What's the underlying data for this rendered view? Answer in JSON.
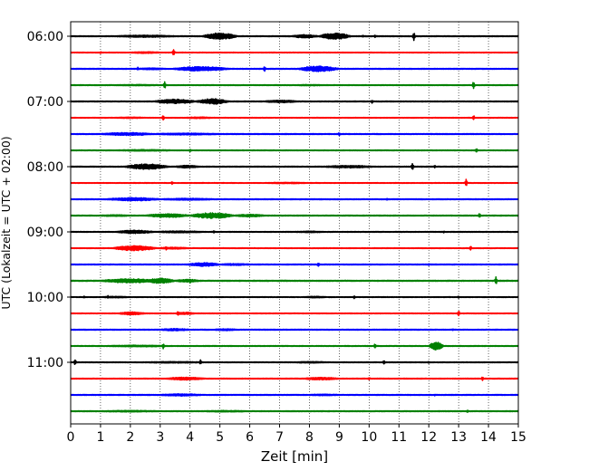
{
  "chart_data": {
    "type": "line",
    "chart_kind": "helicorder",
    "title": "",
    "xlabel": "Zeit  [min]",
    "ylabel": "UTC (Lokalzeit = UTC + 02:00)",
    "xlim": [
      0,
      15
    ],
    "x_ticks": [
      "0",
      "1",
      "2",
      "3",
      "4",
      "5",
      "6",
      "7",
      "8",
      "9",
      "10",
      "11",
      "12",
      "13",
      "14",
      "15"
    ],
    "y_ticks": [
      "06:00",
      "07:00",
      "08:00",
      "09:00",
      "10:00",
      "11:00"
    ],
    "trace_interval_min": 15,
    "grid": "vertical dotted lines at each minute",
    "trace_colors": [
      "#000000",
      "#ff0000",
      "#0000ff",
      "#008000"
    ],
    "traces": [
      {
        "start": "06:00",
        "color": "#000000",
        "base": 0.45,
        "bursts": [
          [
            1.5,
            3.5,
            1.2
          ],
          [
            4.4,
            5.6,
            3.5
          ],
          [
            7.4,
            8.3,
            1.8
          ],
          [
            8.3,
            9.4,
            3.5
          ]
        ],
        "spikes": [
          [
            9.8,
            1.2
          ],
          [
            10.2,
            1.5
          ],
          [
            11.5,
            4.8
          ]
        ]
      },
      {
        "start": "06:15",
        "color": "#ff0000",
        "base": 0.35,
        "bursts": [
          [
            2.0,
            3.0,
            0.9
          ]
        ],
        "spikes": [
          [
            1.0,
            1.2
          ],
          [
            3.45,
            4.2
          ]
        ]
      },
      {
        "start": "06:30",
        "color": "#0000ff",
        "base": 0.45,
        "bursts": [
          [
            2.2,
            3.2,
            0.9
          ],
          [
            3.4,
            5.3,
            2.4
          ],
          [
            7.6,
            9.0,
            3.0
          ]
        ],
        "spikes": [
          [
            2.25,
            1.8
          ],
          [
            6.5,
            3.2
          ]
        ]
      },
      {
        "start": "06:45",
        "color": "#008000",
        "base": 0.4,
        "bursts": [
          [
            1.5,
            3.0,
            0.7
          ],
          [
            7.5,
            8.5,
            0.7
          ]
        ],
        "spikes": [
          [
            3.15,
            4.2
          ],
          [
            13.5,
            4.2
          ]
        ]
      },
      {
        "start": "07:00",
        "color": "#000000",
        "base": 0.45,
        "bursts": [
          [
            2.8,
            4.2,
            2.5
          ],
          [
            4.2,
            5.3,
            3.0
          ],
          [
            6.5,
            7.6,
            1.4
          ]
        ],
        "spikes": [
          [
            7.5,
            1.0
          ],
          [
            10.1,
            2.0
          ]
        ]
      },
      {
        "start": "07:15",
        "color": "#ff0000",
        "base": 0.35,
        "bursts": [
          [
            1.5,
            2.5,
            0.7
          ],
          [
            3.8,
            4.8,
            0.8
          ]
        ],
        "spikes": [
          [
            3.1,
            3.2
          ],
          [
            13.5,
            3.0
          ]
        ]
      },
      {
        "start": "07:30",
        "color": "#0000ff",
        "base": 0.45,
        "bursts": [
          [
            1.0,
            2.8,
            1.6
          ],
          [
            2.8,
            5.0,
            1.0
          ]
        ],
        "spikes": [
          [
            9.0,
            2.0
          ]
        ]
      },
      {
        "start": "07:45",
        "color": "#008000",
        "base": 0.4,
        "bursts": [
          [
            1.5,
            3.5,
            0.8
          ]
        ],
        "spikes": [
          [
            4.0,
            1.8
          ],
          [
            13.6,
            2.8
          ]
        ]
      },
      {
        "start": "08:00",
        "color": "#000000",
        "base": 0.45,
        "bursts": [
          [
            1.8,
            3.3,
            3.0
          ],
          [
            3.5,
            4.3,
            1.4
          ],
          [
            8.5,
            10.2,
            1.3
          ]
        ],
        "spikes": [
          [
            11.45,
            4.2
          ],
          [
            12.2,
            1.6
          ]
        ]
      },
      {
        "start": "08:15",
        "color": "#ff0000",
        "base": 0.35,
        "bursts": [
          [
            6.5,
            8.0,
            0.7
          ]
        ],
        "spikes": [
          [
            3.4,
            1.8
          ],
          [
            13.25,
            4.8
          ]
        ]
      },
      {
        "start": "08:30",
        "color": "#0000ff",
        "base": 0.45,
        "bursts": [
          [
            1.2,
            3.0,
            1.8
          ],
          [
            3.0,
            4.8,
            1.0
          ]
        ],
        "spikes": [
          [
            10.6,
            1.2
          ]
        ]
      },
      {
        "start": "08:45",
        "color": "#008000",
        "base": 0.45,
        "bursts": [
          [
            2.5,
            4.0,
            2.0
          ],
          [
            4.0,
            5.5,
            3.2
          ],
          [
            5.5,
            6.5,
            1.4
          ],
          [
            1.0,
            2.0,
            0.9
          ]
        ],
        "spikes": [
          [
            4.7,
            3.0
          ],
          [
            13.7,
            2.8
          ]
        ]
      },
      {
        "start": "09:00",
        "color": "#000000",
        "base": 0.4,
        "bursts": [
          [
            1.5,
            2.8,
            1.8
          ],
          [
            2.8,
            4.5,
            1.0
          ],
          [
            7.5,
            8.5,
            0.8
          ]
        ],
        "spikes": [
          [
            4.8,
            1.4
          ],
          [
            12.5,
            1.0
          ]
        ]
      },
      {
        "start": "09:15",
        "color": "#ff0000",
        "base": 0.35,
        "bursts": [
          [
            1.4,
            2.9,
            2.8
          ],
          [
            2.9,
            4.0,
            1.0
          ]
        ],
        "spikes": [
          [
            3.2,
            2.2
          ],
          [
            13.4,
            3.0
          ]
        ]
      },
      {
        "start": "09:30",
        "color": "#0000ff",
        "base": 0.45,
        "bursts": [
          [
            3.9,
            5.0,
            2.0
          ],
          [
            5.0,
            6.0,
            1.0
          ]
        ],
        "spikes": [
          [
            8.3,
            2.8
          ],
          [
            12.0,
            1.2
          ]
        ]
      },
      {
        "start": "09:45",
        "color": "#008000",
        "base": 0.5,
        "bursts": [
          [
            1.0,
            3.0,
            2.2
          ],
          [
            2.5,
            3.5,
            2.8
          ],
          [
            3.5,
            4.3,
            1.6
          ]
        ],
        "spikes": [
          [
            4.0,
            3.2
          ],
          [
            14.25,
            4.6
          ]
        ]
      },
      {
        "start": "10:00",
        "color": "#000000",
        "base": 0.35,
        "bursts": [
          [
            1.0,
            2.0,
            0.8
          ],
          [
            7.8,
            8.6,
            0.8
          ]
        ],
        "spikes": [
          [
            0.45,
            1.2
          ],
          [
            1.25,
            1.6
          ],
          [
            9.5,
            2.0
          ],
          [
            13.0,
            1.2
          ]
        ]
      },
      {
        "start": "10:15",
        "color": "#ff0000",
        "base": 0.35,
        "bursts": [
          [
            1.6,
            2.5,
            1.6
          ],
          [
            3.5,
            4.2,
            1.2
          ]
        ],
        "spikes": [
          [
            3.6,
            3.2
          ],
          [
            13.0,
            3.2
          ]
        ]
      },
      {
        "start": "10:30",
        "color": "#0000ff",
        "base": 0.45,
        "bursts": [
          [
            3.0,
            4.0,
            1.2
          ],
          [
            4.8,
            5.6,
            1.0
          ]
        ],
        "spikes": [
          [
            12.8,
            1.0
          ]
        ]
      },
      {
        "start": "10:45",
        "color": "#008000",
        "base": 0.4,
        "bursts": [
          [
            1.2,
            3.3,
            0.9
          ],
          [
            12.0,
            12.5,
            4.8
          ]
        ],
        "spikes": [
          [
            3.1,
            3.2
          ],
          [
            10.2,
            2.8
          ]
        ]
      },
      {
        "start": "11:00",
        "color": "#000000",
        "base": 0.4,
        "bursts": [
          [
            2.5,
            4.5,
            0.8
          ],
          [
            7.5,
            8.6,
            0.8
          ]
        ],
        "spikes": [
          [
            0.15,
            3.6
          ],
          [
            4.35,
            3.2
          ],
          [
            10.5,
            2.4
          ],
          [
            12.0,
            1.0
          ]
        ]
      },
      {
        "start": "11:15",
        "color": "#ff0000",
        "base": 0.4,
        "bursts": [
          [
            3.2,
            4.5,
            1.6
          ],
          [
            7.8,
            9.0,
            1.4
          ]
        ],
        "spikes": [
          [
            10.0,
            1.4
          ],
          [
            13.8,
            2.2
          ]
        ]
      },
      {
        "start": "11:30",
        "color": "#0000ff",
        "base": 0.45,
        "bursts": [
          [
            3.0,
            4.4,
            1.2
          ],
          [
            8.0,
            9.0,
            0.8
          ]
        ],
        "spikes": [
          [
            12.2,
            1.0
          ]
        ]
      },
      {
        "start": "11:45",
        "color": "#008000",
        "base": 0.45,
        "bursts": [
          [
            1.0,
            3.0,
            0.8
          ],
          [
            4.5,
            6.0,
            0.8
          ]
        ],
        "spikes": [
          [
            13.3,
            1.8
          ]
        ]
      }
    ]
  }
}
